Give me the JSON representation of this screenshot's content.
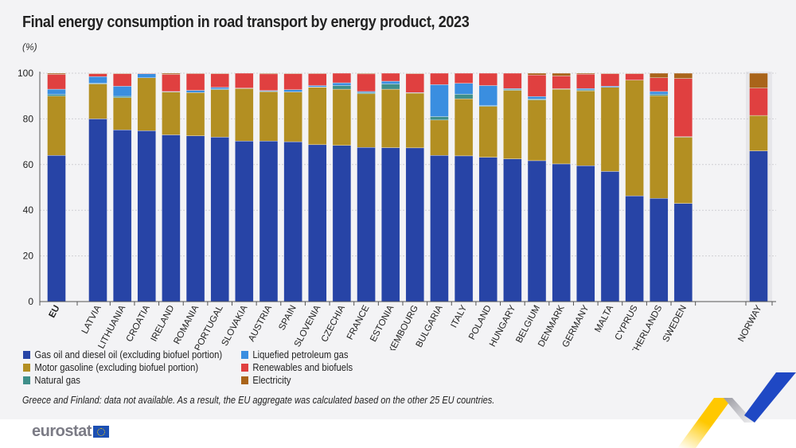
{
  "title": "Final energy consumption in road transport by energy product, 2023",
  "unit": "(%)",
  "note": "Greece and Finland: data not available. As a result, the EU aggregate was calculated based on the other 25 EU countries.",
  "logo": "eurostat",
  "colors": {
    "diesel": "#2744a6",
    "gasoline": "#b38f22",
    "natural_gas": "#3f8f8a",
    "lpg": "#3a8ee0",
    "renewables": "#e04040",
    "electricity": "#a9641a"
  },
  "chart_data": {
    "type": "bar",
    "stacked": true,
    "ylim": [
      0,
      100
    ],
    "yticks": [
      0,
      20,
      40,
      60,
      80,
      100
    ],
    "grid": true,
    "legend_position": "bottom-left",
    "categories": [
      "EU",
      "LATVIA",
      "LITHUANIA",
      "CROATIA",
      "IRELAND",
      "ROMANIA",
      "PORTUGAL",
      "SLOVAKIA",
      "AUSTRIA",
      "SPAIN",
      "SLOVENIA",
      "CZECHIA",
      "FRANCE",
      "ESTONIA",
      "LUXEMBOURG",
      "BULGARIA",
      "ITALY",
      "POLAND",
      "HUNGARY",
      "BELGIUM",
      "DENMARK",
      "GERMANY",
      "MALTA",
      "CYPRUS",
      "NETHERLANDS",
      "SWEDEN",
      "NORWAY"
    ],
    "series": [
      {
        "name": "Gas oil and diesel oil (excluding biofuel portion)",
        "key": "diesel",
        "values": [
          64,
          80,
          75.2,
          74.8,
          73,
          72.6,
          72,
          70.3,
          70.3,
          70,
          68.7,
          68.4,
          67.5,
          67.4,
          67.3,
          64,
          63.8,
          63.2,
          62.5,
          61.7,
          60.3,
          59.5,
          57,
          46.3,
          45.2,
          43,
          66
        ]
      },
      {
        "name": "Motor gasoline (excluding biofuel portion)",
        "key": "gasoline",
        "values": [
          26,
          15.3,
          14.1,
          23.2,
          18.8,
          18.9,
          20.8,
          23,
          21.7,
          21.8,
          25.1,
          24.6,
          23.5,
          25.6,
          24,
          15.5,
          25,
          22.3,
          30,
          26.6,
          32.7,
          32.8,
          36.8,
          50.7,
          45,
          29,
          15.5
        ]
      },
      {
        "name": "Natural gas",
        "key": "natural_gas",
        "values": [
          0.7,
          0.3,
          0.6,
          0,
          0,
          0,
          0.3,
          0,
          0.1,
          0,
          0.2,
          1.6,
          0.5,
          2.3,
          0,
          1.5,
          2,
          0.3,
          0.5,
          0.4,
          0.2,
          0.4,
          0,
          0,
          0.5,
          0.2,
          0
        ]
      },
      {
        "name": "Liquefied petroleum gas",
        "key": "lpg",
        "values": [
          2.3,
          2.9,
          4.4,
          1.8,
          0.2,
          1,
          0.7,
          0.2,
          0.3,
          1,
          0.6,
          1.2,
          0.5,
          1.2,
          0.2,
          14,
          4.8,
          8.8,
          0.3,
          1.1,
          0,
          0.6,
          0.5,
          0,
          1.3,
          0,
          0
        ]
      },
      {
        "name": "Renewables and biofuels",
        "key": "renewables",
        "values": [
          6.5,
          1.3,
          5.5,
          0.2,
          7.5,
          7.4,
          6,
          6.5,
          7.3,
          7,
          5.3,
          4.2,
          7.7,
          3.5,
          8.3,
          5,
          4.4,
          5.4,
          6.7,
          9.4,
          5.6,
          6.3,
          5.5,
          2.8,
          6,
          25.5,
          12
        ]
      },
      {
        "name": "Electricity",
        "key": "electricity",
        "values": [
          0.5,
          0.2,
          0.2,
          0,
          0.5,
          0.1,
          0.2,
          0,
          0.3,
          0.2,
          0.1,
          0,
          0.3,
          0,
          0.2,
          0,
          0,
          0,
          0,
          0.8,
          1.2,
          0.4,
          0.2,
          0.2,
          2,
          2.3,
          6.5
        ]
      }
    ]
  }
}
